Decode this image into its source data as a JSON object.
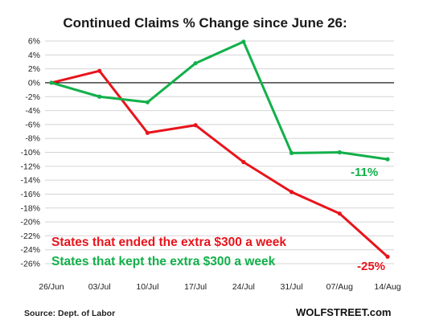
{
  "chart_data": {
    "type": "line",
    "title": "Continued  Claims % Change since June 26:",
    "categories": [
      "26/Jun",
      "03/Jul",
      "10/Jul",
      "17/Jul",
      "24/Jul",
      "31/Jul",
      "07/Aug",
      "14/Aug"
    ],
    "y_ticks": [
      "6%",
      "4%",
      "2%",
      "0%",
      "-2%",
      "-4%",
      "-6%",
      "-8%",
      "-10%",
      "-12%",
      "-14%",
      "-16%",
      "-18%",
      "-20%",
      "-22%",
      "-24%",
      "-26%"
    ],
    "ylim": [
      -26,
      6
    ],
    "grid": "horizontal",
    "series": [
      {
        "name": "States that ended the extra $300 a week",
        "color": "#e8141c",
        "values": [
          0,
          1.7,
          -7.2,
          -6.1,
          -11.4,
          -15.7,
          -18.8,
          -25
        ],
        "end_label": "-25%"
      },
      {
        "name": "States that kept the extra $300 a week",
        "color": "#12b04a",
        "values": [
          0,
          -2,
          -2.8,
          2.8,
          5.9,
          -10.1,
          -10,
          -11
        ],
        "end_label": "-11%"
      }
    ],
    "source": "Source: Dept. of Labor",
    "brand": "WOLFSTREET.com"
  }
}
